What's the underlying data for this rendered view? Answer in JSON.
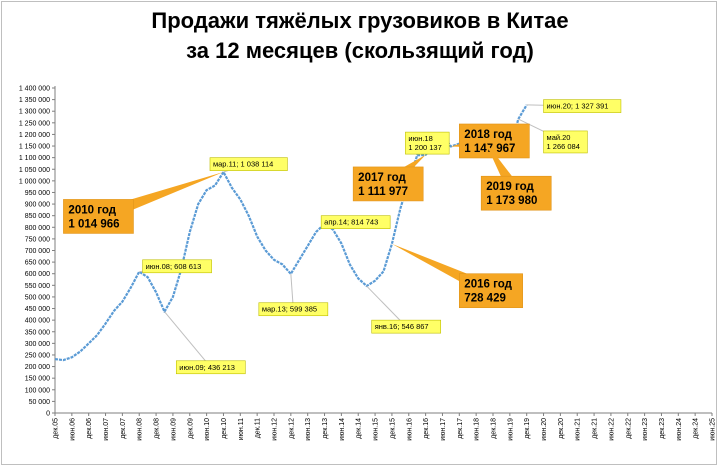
{
  "chart_data": {
    "type": "line",
    "title_lines": [
      "Продажи тяжёлых грузовиков в Китае",
      "за 12 месяцев (скользящий год)"
    ],
    "xlabel": "",
    "ylabel": "",
    "ylim": [
      0,
      1400000
    ],
    "y_tick_labels": [
      "0",
      "50 000",
      "100 000",
      "150 000",
      "200 000",
      "250 000",
      "300 000",
      "350 000",
      "400 000",
      "450 000",
      "500 000",
      "550 000",
      "600 000",
      "650 000",
      "700 000",
      "750 000",
      "800 000",
      "850 000",
      "900 000",
      "950 000",
      "1 000 000",
      "1 050 000",
      "1 100 000",
      "1 150 000",
      "1 200 000",
      "1 250 000",
      "1 300 000",
      "1 350 000",
      "1 400 000"
    ],
    "x_tick_labels": [
      "дек.05",
      "июн.06",
      "дек.06",
      "июн.07",
      "дек.07",
      "июн.08",
      "дек.08",
      "июн.09",
      "дек.09",
      "июн.10",
      "дек.10",
      "июн.11",
      "дек.11",
      "июн.12",
      "дек.12",
      "июн.13",
      "дек.13",
      "июн.14",
      "дек.14",
      "июн.15",
      "дек.15",
      "июн.16",
      "дек.16",
      "июн.17",
      "дек.17",
      "июн.18",
      "дек.18",
      "июн.19",
      "дек.19",
      "июн.20",
      "дек.20",
      "июн.21",
      "дек.21",
      "июн.22",
      "дек.22",
      "июн.23",
      "дек.23",
      "июн.24",
      "дек.24",
      "июн.25"
    ],
    "grid": false,
    "legend": "none",
    "series": [
      {
        "color": "#5b9bd5",
        "points": [
          [
            0,
            232000
          ],
          [
            0.5,
            228000
          ],
          [
            1,
            240000
          ],
          [
            1.5,
            265000
          ],
          [
            2,
            300000
          ],
          [
            2.5,
            335000
          ],
          [
            3,
            385000
          ],
          [
            3.5,
            440000
          ],
          [
            4,
            480000
          ],
          [
            4.5,
            540000
          ],
          [
            5,
            608613
          ],
          [
            5.5,
            585000
          ],
          [
            6,
            520000
          ],
          [
            6.5,
            436213
          ],
          [
            7,
            500000
          ],
          [
            7.5,
            620000
          ],
          [
            8,
            780000
          ],
          [
            8.5,
            900000
          ],
          [
            9,
            960000
          ],
          [
            9.5,
            980000
          ],
          [
            10,
            1038114
          ],
          [
            10.5,
            970000
          ],
          [
            11,
            920000
          ],
          [
            11.5,
            850000
          ],
          [
            12,
            760000
          ],
          [
            12.5,
            700000
          ],
          [
            13,
            660000
          ],
          [
            13.5,
            640000
          ],
          [
            14,
            599385
          ],
          [
            14.5,
            660000
          ],
          [
            15,
            720000
          ],
          [
            15.5,
            780000
          ],
          [
            16,
            814743
          ],
          [
            16.5,
            790000
          ],
          [
            17,
            730000
          ],
          [
            17.5,
            640000
          ],
          [
            18,
            580000
          ],
          [
            18.5,
            546867
          ],
          [
            19,
            570000
          ],
          [
            19.5,
            610000
          ],
          [
            20,
            728429
          ],
          [
            20.5,
            880000
          ],
          [
            21,
            1000000
          ],
          [
            21.5,
            1110000
          ],
          [
            22,
            1111977
          ],
          [
            22.5,
            1150000
          ],
          [
            23,
            1200137
          ],
          [
            23.5,
            1147967
          ],
          [
            24,
            1160000
          ],
          [
            24.5,
            1140000
          ],
          [
            25,
            1150000
          ],
          [
            25.5,
            1173980
          ],
          [
            26,
            1160000
          ],
          [
            26.5,
            1190000
          ],
          [
            27,
            1130000
          ],
          [
            27.5,
            1266084
          ],
          [
            28,
            1327391
          ]
        ]
      }
    ],
    "annotations": [
      {
        "text": "июн.08; 608 613",
        "x": 5,
        "y": 608613,
        "lx": 5.2,
        "ly": 660000,
        "style": "small"
      },
      {
        "text": "июн.09; 436 213",
        "x": 6.5,
        "y": 436213,
        "lx": 7.2,
        "ly": 225000,
        "style": "small"
      },
      {
        "text": "мар.11; 1 038 114",
        "x": 10,
        "y": 1038114,
        "lx": 9.2,
        "ly": 1100000,
        "style": "small"
      },
      {
        "text": "мар.13; 599 385",
        "x": 14,
        "y": 599385,
        "lx": 12.1,
        "ly": 475000,
        "style": "small"
      },
      {
        "text": "апр.14; 814 743",
        "x": 16,
        "y": 814743,
        "lx": 15.8,
        "ly": 850000,
        "style": "small"
      },
      {
        "text": "янв.16; 546 867",
        "x": 18.5,
        "y": 546867,
        "lx": 18.8,
        "ly": 400000,
        "style": "small"
      },
      {
        "text": "июн.18\n1 200 137",
        "x": 23,
        "y": 1200137,
        "lx": 20.8,
        "ly": 1210000,
        "style": "small"
      },
      {
        "text": "май.20\n1 266 084",
        "x": 27.5,
        "y": 1266084,
        "lx": 29.0,
        "ly": 1215000,
        "style": "small"
      },
      {
        "text": "июн.20; 1 327 391",
        "x": 28,
        "y": 1327391,
        "lx": 29.0,
        "ly": 1350000,
        "style": "small"
      },
      {
        "text": "2010 год\n1 014 966",
        "x": 10,
        "y": 1038114,
        "lx": 0.5,
        "ly": 920000,
        "style": "big"
      },
      {
        "text": "2016 год\n728 429",
        "x": 20,
        "y": 728429,
        "lx": 24.0,
        "ly": 600000,
        "style": "big"
      },
      {
        "text": "2017 год\n1 111 977",
        "x": 22,
        "y": 1111977,
        "lx": 17.7,
        "ly": 1060000,
        "style": "big"
      },
      {
        "text": "2018 год\n1 147 967",
        "x": 23.5,
        "y": 1147967,
        "lx": 24.0,
        "ly": 1245000,
        "style": "big"
      },
      {
        "text": "2019 год\n1 173 980",
        "x": 25.5,
        "y": 1173980,
        "lx": 25.3,
        "ly": 1020000,
        "style": "big"
      }
    ]
  }
}
